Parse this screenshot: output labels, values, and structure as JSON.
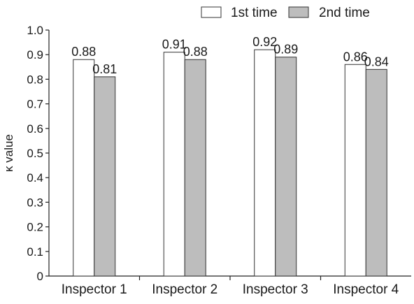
{
  "chart_data": {
    "type": "bar",
    "categories": [
      "Inspector 1",
      "Inspector 2",
      "Inspector 3",
      "Inspector 4"
    ],
    "series": [
      {
        "name": "1st time",
        "values": [
          0.88,
          0.91,
          0.92,
          0.86
        ],
        "color": "#ffffff"
      },
      {
        "name": "2nd time",
        "values": [
          0.81,
          0.88,
          0.89,
          0.84
        ],
        "color": "#bdbdbd"
      }
    ],
    "data_labels": [
      [
        "0.88",
        "0.81"
      ],
      [
        "0.91",
        "0.88"
      ],
      [
        "0.92",
        "0.89"
      ],
      [
        "0.86",
        "0.84"
      ]
    ],
    "yticks": [
      "0",
      "0.1",
      "0.2",
      "0.3",
      "0.4",
      "0.5",
      "0.6",
      "0.7",
      "0.8",
      "0.9",
      "1.0"
    ],
    "ylabel": "κ value",
    "xlabel": "",
    "title": "",
    "ylim": [
      0,
      1.0
    ],
    "legend_position": "top-right",
    "grid": false
  }
}
